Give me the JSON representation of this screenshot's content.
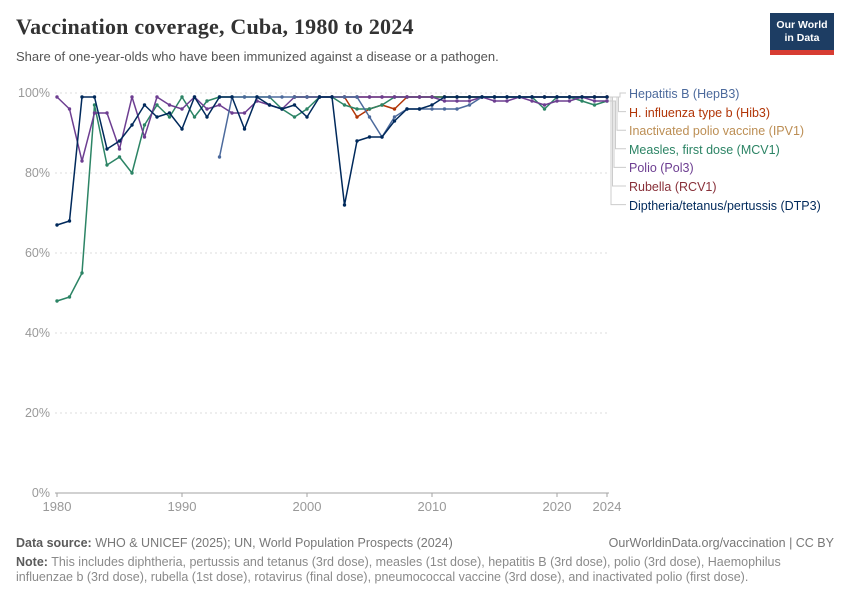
{
  "header": {
    "title": "Vaccination coverage, Cuba, 1980 to 2024",
    "subtitle": "Share of one-year-olds who have been immunized against a disease or a pathogen.",
    "logo": {
      "line1": "Our World",
      "line2": "in Data",
      "bg_color": "#1d3d63",
      "accent_color": "#d73c32"
    }
  },
  "chart_data": {
    "type": "line",
    "title": "Vaccination coverage, Cuba, 1980 to 2024",
    "xlabel": "",
    "ylabel": "",
    "x_range": [
      1980,
      2024
    ],
    "ylim": [
      0,
      100
    ],
    "y_ticks": [
      "0%",
      "20%",
      "40%",
      "60%",
      "80%",
      "100%"
    ],
    "x_ticks": [
      1980,
      1990,
      2000,
      2010,
      2020,
      2024
    ],
    "grid": "horizontal dashed",
    "legend_position": "right",
    "unit": "%",
    "series": [
      {
        "name": "Hepatitis B (HepB3)",
        "short": "hepb3",
        "color": "#4C6A9C",
        "start_year": 1993,
        "values": [
          84,
          99,
          99,
          99,
          99,
          99,
          99,
          99,
          99,
          99,
          99,
          99,
          94,
          89,
          94,
          96,
          96,
          96,
          96,
          96,
          97,
          99,
          99,
          99,
          99,
          99,
          99,
          99,
          99,
          99,
          99,
          99
        ]
      },
      {
        "name": "H. influenza type b (Hib3)",
        "short": "hib3",
        "color": "#B13507",
        "start_year": 1999,
        "values": [
          99,
          99,
          99,
          99,
          99,
          94,
          96,
          97,
          96,
          99,
          99,
          99,
          99,
          99,
          99,
          99,
          99,
          99,
          99,
          99,
          99,
          99,
          99,
          99,
          99,
          99
        ]
      },
      {
        "name": "Inactivated polio vaccine (IPV1)",
        "short": "ipv1",
        "color": "#BC8E54",
        "start_year": 2023,
        "values": [
          99,
          99
        ]
      },
      {
        "name": "Measles, first dose (MCV1)",
        "short": "mcv1",
        "color": "#2C8465",
        "start_year": 1980,
        "values": [
          48,
          49,
          55,
          97,
          82,
          84,
          80,
          92,
          97,
          94,
          99,
          94,
          98,
          99,
          99,
          99,
          99,
          99,
          96,
          94,
          96,
          99,
          99,
          97,
          96,
          96,
          97,
          99,
          99,
          99,
          99,
          99,
          99,
          99,
          99,
          99,
          99,
          99,
          99,
          96,
          99,
          99,
          98,
          97,
          98
        ]
      },
      {
        "name": "Polio (Pol3)",
        "short": "pol3",
        "color": "#6D3E91",
        "start_year": 1980,
        "values": [
          99,
          96,
          83,
          95,
          95,
          86,
          99,
          89,
          99,
          97,
          96,
          99,
          96,
          97,
          95,
          95,
          98,
          97,
          96,
          99,
          99,
          99,
          99,
          99,
          99,
          99,
          99,
          99,
          99,
          99,
          99,
          98,
          98,
          98,
          99,
          98,
          98,
          99,
          98,
          97,
          98,
          98,
          99,
          98,
          98
        ]
      },
      {
        "name": "Rubella (RCV1)",
        "short": "rcv1",
        "color": "#883039",
        "start_year": 1999,
        "values": [
          99,
          99,
          99,
          99,
          99,
          99,
          99,
          99,
          99,
          99,
          99,
          99,
          99,
          99,
          99,
          99,
          99,
          99,
          99,
          99,
          99,
          99,
          99,
          99,
          99,
          99
        ]
      },
      {
        "name": "Diptheria/tetanus/pertussis (DTP3)",
        "short": "dtp3",
        "color": "#00295B",
        "start_year": 1980,
        "values": [
          67,
          68,
          99,
          99,
          86,
          88,
          92,
          97,
          94,
          95,
          91,
          99,
          94,
          99,
          99,
          91,
          99,
          97,
          96,
          97,
          94,
          99,
          99,
          72,
          88,
          89,
          89,
          93,
          96,
          96,
          97,
          99,
          99,
          99,
          99,
          99,
          99,
          99,
          99,
          99,
          99,
          99,
          99,
          99,
          99
        ]
      }
    ]
  },
  "footer": {
    "source_label": "Data source:",
    "source_text": " WHO & UNICEF (2025); UN, World Population Prospects (2024)",
    "link_text": "OurWorldinData.org/vaccination | CC BY",
    "note_label": "Note:",
    "note_text": " This includes diphtheria, pertussis and tetanus (3rd dose), measles (1st dose), hepatitis B (3rd dose), polio (3rd dose), Haemophilus influenzae b (3rd dose), rubella (1st dose), rotavirus (final dose), pneumococcal vaccine (3rd dose), and inactivated polio (first dose)."
  }
}
